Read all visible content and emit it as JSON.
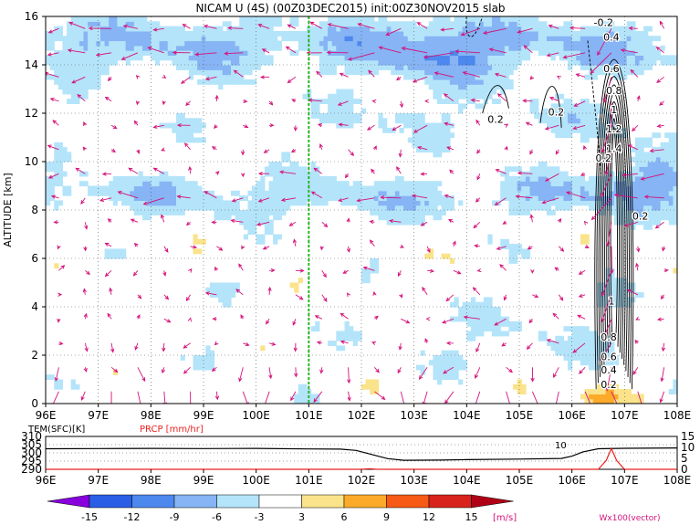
{
  "title": "NICAM U (4S) (00Z03DEC2015) init:00Z30NOV2015 slab",
  "colors": {
    "c_n15": "#8800dd",
    "c_n12": "#2a5ee6",
    "c_n9": "#4d88ee",
    "c_n6": "#86b4f4",
    "c_n3": "#b4e4fa",
    "c_0": "#ffffff",
    "c_3": "#fae38a",
    "c_6": "#fbaa2a",
    "c_9": "#f65a14",
    "c_12": "#d8231c",
    "c_15": "#b00018",
    "vector": "#d4117a",
    "marker": "#22b822",
    "temp_line": "#000000",
    "prcp_line": "#ee2222"
  },
  "chart_data": [
    {
      "type": "heatmap",
      "title": "NICAM U (4S) (00Z03DEC2015) init:00Z30NOV2015 slab",
      "xlabel": "",
      "ylabel": "ALTITUDE [km]",
      "x_ticks": [
        "96E",
        "97E",
        "98E",
        "99E",
        "100E",
        "101E",
        "102E",
        "103E",
        "104E",
        "105E",
        "106E",
        "107E",
        "108E"
      ],
      "y_ticks": [
        "0",
        "2",
        "4",
        "6",
        "8",
        "10",
        "12",
        "14",
        "16"
      ],
      "xlim": [
        96,
        108
      ],
      "ylim": [
        0,
        16
      ],
      "grid": true,
      "marker_lon": 101,
      "field_value_range": [
        -15,
        15
      ],
      "contour_labels": [
        "-0.2",
        "0.4",
        "0.6",
        "0.8",
        "1",
        "1.2",
        "1.4",
        "0.2",
        "0.2",
        "0.2",
        "0.2",
        "1",
        "0.8",
        "0.6",
        "0.4",
        "0.2"
      ],
      "colorbar": {
        "ticks": [
          "-15",
          "-12",
          "-9",
          "-6",
          "-3",
          "3",
          "6",
          "9",
          "12",
          "15"
        ],
        "unit": "[m/s]",
        "vector_label": "Wx100(vector)"
      }
    },
    {
      "type": "line",
      "left_label": "TEM(SFC)[K]",
      "right_label": "PRCP [mm/hr]",
      "left_ticks": [
        "290",
        "295",
        "300",
        "305",
        "310"
      ],
      "right_ticks": [
        "0",
        "5",
        "10",
        "15"
      ],
      "x_ticks": [
        "96E",
        "97E",
        "98E",
        "99E",
        "100E",
        "101E",
        "102E",
        "103E",
        "104E",
        "105E",
        "106E",
        "107E",
        "108E"
      ],
      "xlim": [
        96,
        108
      ],
      "series": [
        {
          "points": [
            [
              96,
              302.5
            ],
            [
              97,
              302.6
            ],
            [
              98,
              302.7
            ],
            [
              99,
              302.6
            ],
            [
              100,
              302.7
            ],
            [
              101,
              302.4
            ],
            [
              101.6,
              302.3
            ],
            [
              101.9,
              301.5
            ],
            [
              102.2,
              299.0
            ],
            [
              102.5,
              296.5
            ],
            [
              102.8,
              295.5
            ],
            [
              103.5,
              295.6
            ],
            [
              104,
              295.9
            ],
            [
              105,
              296.2
            ],
            [
              105.8,
              296.6
            ],
            [
              106,
              298
            ],
            [
              106.2,
              300.5
            ],
            [
              106.5,
              302.5
            ],
            [
              107,
              302.8
            ],
            [
              108,
              303
            ]
          ]
        },
        {
          "points": [
            [
              96,
              0
            ],
            [
              102,
              0
            ],
            [
              102.15,
              0.3
            ],
            [
              102.3,
              0
            ],
            [
              106.5,
              0
            ],
            [
              106.65,
              4
            ],
            [
              106.75,
              9.5
            ],
            [
              106.85,
              4
            ],
            [
              107,
              0
            ],
            [
              108,
              0
            ]
          ]
        }
      ],
      "annotation": "10"
    }
  ]
}
